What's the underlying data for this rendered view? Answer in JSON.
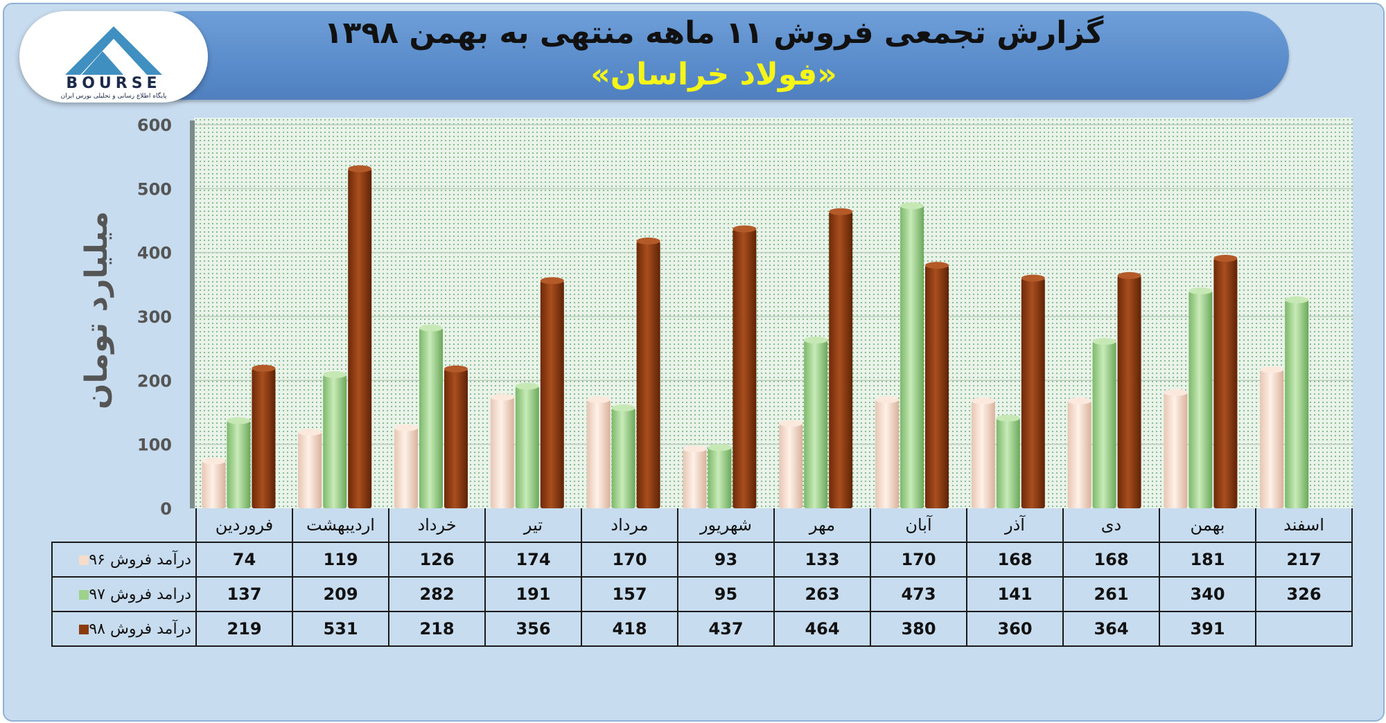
{
  "title": "گزارش تجمعی فروش ۱۱ ماهه منتهی به بهمن ۱۳۹۸",
  "subtitle": "«فولاد خراسان»",
  "logo": {
    "text": "BOURSE",
    "tagline": "پایگاه اطلاع رسانی و تحلیلی بورس ایران"
  },
  "colors": {
    "s96": "#f8dccb",
    "s97": "#9ed18a",
    "s98": "#8a3a0f"
  },
  "chart_data": {
    "type": "bar",
    "title": "گزارش تجمعی فروش ۱۱ ماهه منتهی به بهمن ۱۳۹۸",
    "ylabel": "میلیارد تومان",
    "ylim": [
      0,
      600
    ],
    "yticks": [
      0,
      100,
      200,
      300,
      400,
      500,
      600
    ],
    "grid": true,
    "categories": [
      "فروردین",
      "اردیبهشت",
      "خرداد",
      "تیر",
      "مرداد",
      "شهریور",
      "مهر",
      "آبان",
      "آذر",
      "دی",
      "بهمن",
      "اسفند"
    ],
    "series": [
      {
        "name": "درآمد فروش ۹۶",
        "values": [
          74,
          119,
          126,
          174,
          170,
          93,
          133,
          170,
          168,
          168,
          181,
          217
        ]
      },
      {
        "name": "درامد فروش ۹۷",
        "values": [
          137,
          209,
          282,
          191,
          157,
          95,
          263,
          473,
          141,
          261,
          340,
          326
        ]
      },
      {
        "name": "درآمد فروش ۹۸",
        "values": [
          219,
          531,
          218,
          356,
          418,
          437,
          464,
          380,
          360,
          364,
          391,
          null
        ]
      }
    ]
  }
}
